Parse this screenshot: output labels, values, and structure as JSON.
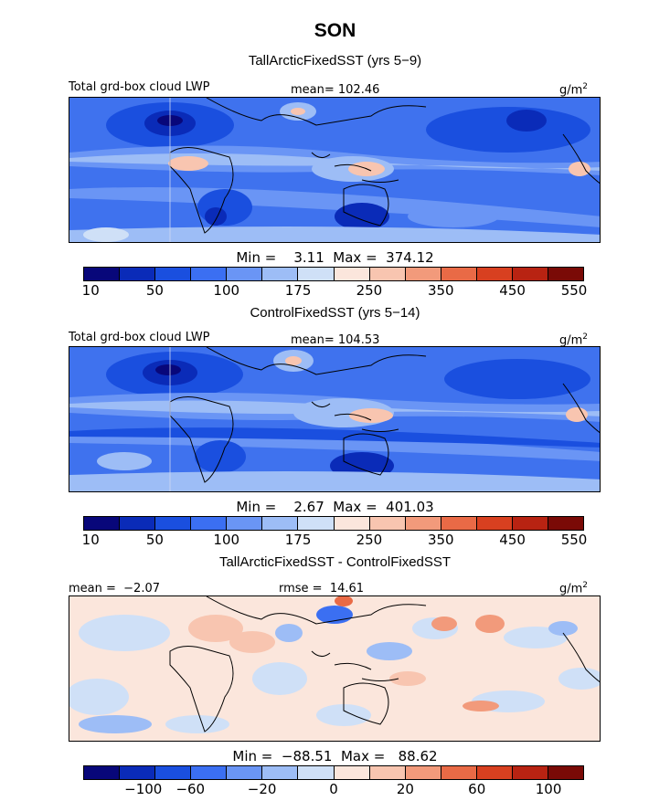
{
  "figure": {
    "season": "SON"
  },
  "panels": [
    {
      "title": "TallArcticFixedSST (yrs 5-9)",
      "left_label": "Total grd-box cloud LWP",
      "center_label": "mean= 102.46",
      "unit_base": "g/m",
      "unit_exp": "2",
      "stats": "Min =    3.11  Max =  374.12",
      "ticks": [
        "10",
        "50",
        "100",
        "175",
        "250",
        "350",
        "450",
        "550"
      ]
    },
    {
      "title": "ControlFixedSST (yrs 5-14)",
      "left_label": "Total grd-box cloud LWP",
      "center_label": "mean= 104.53",
      "unit_base": "g/m",
      "unit_exp": "2",
      "stats": "Min =    2.67  Max =  401.03",
      "ticks": [
        "10",
        "50",
        "100",
        "175",
        "250",
        "350",
        "450",
        "550"
      ]
    },
    {
      "title": "TallArcticFixedSST - ControlFixedSST",
      "left_label": "mean =  -2.07",
      "center_label": "rmse =  14.61",
      "unit_base": "g/m",
      "unit_exp": "2",
      "stats": "Min =  -88.51  Max =   88.62",
      "ticks": [
        "-100",
        "-60",
        "-20",
        "0",
        "20",
        "60",
        "100"
      ]
    }
  ],
  "colorbar_colors": [
    "#08077a",
    "#0a2bb8",
    "#1a4fdf",
    "#3b6ff2",
    "#6a95f5",
    "#9dbdf6",
    "#cfe0f7",
    "#fbe6dc",
    "#f8c5b0",
    "#f29a7b",
    "#e96a46",
    "#d84020",
    "#b82312",
    "#7a0a06"
  ]
}
